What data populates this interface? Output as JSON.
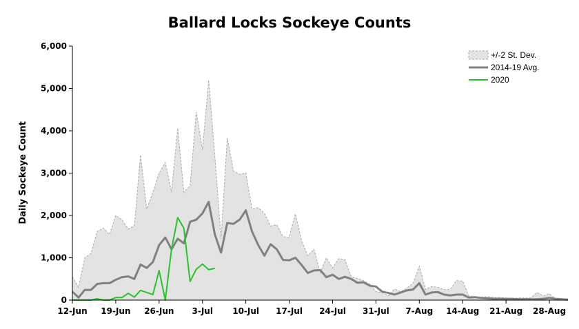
{
  "chart_data": {
    "type": "line",
    "title": "Ballard Locks Sockeye Counts",
    "xlabel": "",
    "ylabel": "Daily Sockeye Count",
    "ylim": [
      0,
      6000
    ],
    "y_ticks": [
      0,
      1000,
      2000,
      3000,
      4000,
      5000,
      6000
    ],
    "y_tick_labels": [
      "0",
      "1,000",
      "2,000",
      "3,000",
      "4,000",
      "5,000",
      "6,000"
    ],
    "x_ticks": [
      0,
      7,
      14,
      21,
      28,
      35,
      42,
      49,
      56,
      63,
      70,
      77
    ],
    "x_tick_labels": [
      "12-Jun",
      "19-Jun",
      "26-Jun",
      "3-Jul",
      "10-Jul",
      "17-Jul",
      "24-Jul",
      "31-Jul",
      "7-Aug",
      "14-Aug",
      "21-Aug",
      "28-Aug"
    ],
    "x_range": [
      0,
      80
    ],
    "grid": false,
    "legend_position": "top-right",
    "series": [
      {
        "name": "+/-2 St. Dev.",
        "kind": "band",
        "color": "#e3e3e3",
        "edge_color": "#a8a8a8",
        "upper": [
          550,
          300,
          1000,
          1100,
          1620,
          1700,
          1550,
          2000,
          1900,
          1680,
          1750,
          3430,
          2150,
          2550,
          3000,
          3250,
          2550,
          4060,
          2550,
          2700,
          4440,
          3550,
          5200,
          3400,
          1450,
          3830,
          3050,
          2970,
          3000,
          2150,
          2180,
          2050,
          1750,
          1780,
          1500,
          1480,
          2040,
          1400,
          1050,
          1200,
          650,
          1000,
          760,
          980,
          960,
          550,
          510,
          460,
          380,
          200,
          180,
          100,
          260,
          200,
          280,
          400,
          800,
          250,
          320,
          300,
          250,
          250,
          460,
          450,
          100,
          80,
          70,
          80,
          60,
          60,
          50,
          40,
          50,
          50,
          50,
          180,
          100,
          150,
          30,
          20,
          20
        ],
        "lower": [
          0,
          0,
          0,
          0,
          0,
          0,
          0,
          0,
          0,
          0,
          0,
          0,
          0,
          0,
          0,
          0,
          0,
          0,
          0,
          0,
          0,
          0,
          0,
          0,
          0,
          0,
          0,
          0,
          0,
          0,
          0,
          0,
          0,
          0,
          0,
          0,
          0,
          0,
          0,
          0,
          0,
          0,
          0,
          0,
          0,
          0,
          0,
          0,
          0,
          0,
          0,
          0,
          0,
          0,
          0,
          0,
          0,
          0,
          0,
          0,
          0,
          0,
          0,
          0,
          0,
          0,
          0,
          0,
          0,
          0,
          0,
          0,
          0,
          0,
          0,
          0,
          0,
          0,
          0,
          0,
          0
        ]
      },
      {
        "name": "2014-19 Avg.",
        "kind": "line",
        "color": "#808080",
        "values": [
          200,
          60,
          240,
          240,
          380,
          400,
          400,
          480,
          540,
          560,
          500,
          840,
          760,
          900,
          1300,
          1480,
          1200,
          1450,
          1340,
          1850,
          1900,
          2050,
          2320,
          1550,
          1120,
          1820,
          1800,
          1900,
          2120,
          1620,
          1300,
          1050,
          1320,
          1200,
          950,
          940,
          1000,
          830,
          640,
          700,
          710,
          540,
          600,
          500,
          550,
          500,
          410,
          420,
          340,
          320,
          200,
          170,
          130,
          180,
          230,
          250,
          400,
          130,
          180,
          190,
          130,
          110,
          130,
          130,
          60,
          70,
          50,
          40,
          30,
          30,
          30,
          30,
          20,
          20,
          20,
          20,
          30,
          50,
          30,
          20,
          10
        ],
        "line_width": 3
      },
      {
        "name": "2020",
        "kind": "line",
        "color": "#27c427",
        "values": [
          0,
          0,
          0,
          0,
          30,
          0,
          0,
          60,
          60,
          160,
          70,
          230,
          180,
          130,
          700,
          0,
          1200,
          1950,
          1700,
          440,
          730,
          850,
          720,
          750
        ],
        "line_width": 2
      }
    ]
  }
}
